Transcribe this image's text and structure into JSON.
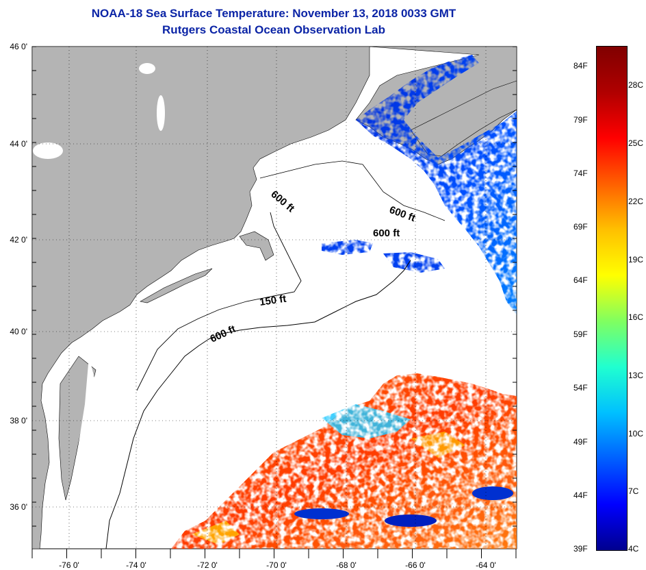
{
  "title": {
    "line1": "NOAA-18 Sea Surface Temperature:  November 13, 2018 0033 GMT",
    "line2": "Rutgers Coastal Ocean Observation Lab"
  },
  "map": {
    "lat_labels": [
      "46 0'",
      "44 0'",
      "42 0'",
      "40 0'",
      "38 0'",
      "36 0'"
    ],
    "lon_labels": [
      "-76 0'",
      "-74 0'",
      "-72 0'",
      "-70 0'",
      "-68 0'",
      "-66 0'",
      "-64 0'"
    ],
    "isobath_labels": [
      "600 ft",
      "600 ft",
      "600 ft",
      "150 ft",
      "600 ft"
    ],
    "colors": {
      "land": "#b4b4b4",
      "ocean_nodata": "#ffffff",
      "title": "#0b24a6"
    }
  },
  "colorbar": {
    "fahrenheit_labels": [
      "84F",
      "79F",
      "74F",
      "69F",
      "64F",
      "59F",
      "54F",
      "49F",
      "44F",
      "39F"
    ],
    "celsius_labels": [
      "28C",
      "25C",
      "22C",
      "19C",
      "16C",
      "13C",
      "10C",
      "7C",
      "4C"
    ],
    "gradient": [
      "#00008f",
      "#0000ff",
      "#0060ff",
      "#00c0ff",
      "#20ffd0",
      "#80ff60",
      "#ffff00",
      "#ffc000",
      "#ff6000",
      "#ff0000",
      "#b00000",
      "#800000"
    ]
  }
}
